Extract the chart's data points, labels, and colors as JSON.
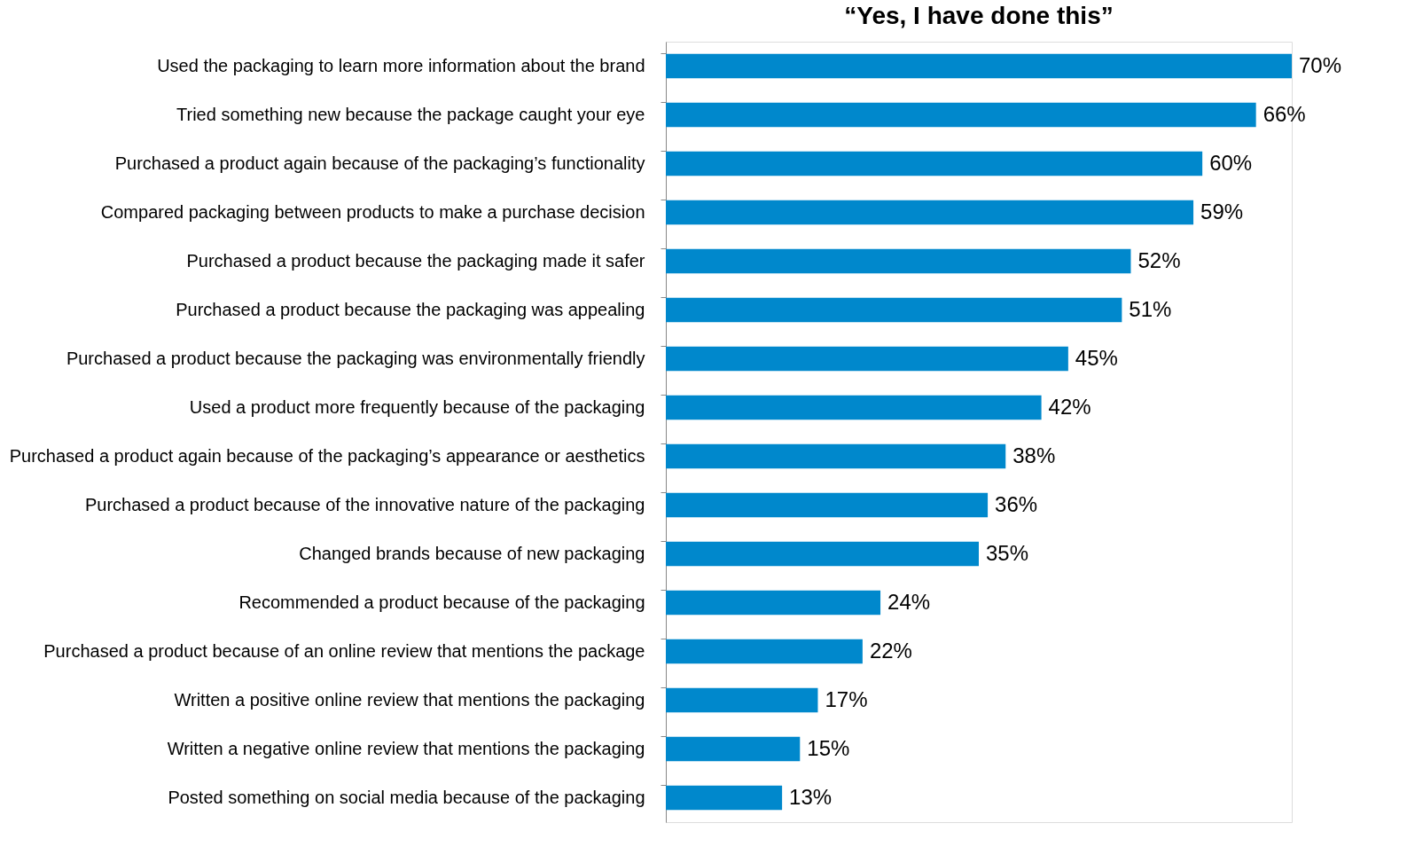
{
  "chart_data": {
    "type": "bar",
    "orientation": "horizontal",
    "title": "“Yes, I have done this”",
    "categories": [
      "Used the packaging to learn more information about the brand",
      "Tried something new because the package caught your eye",
      "Purchased a product again because of the packaging’s functionality",
      "Compared packaging between products to make a purchase decision",
      "Purchased a product because the packaging made it safer",
      "Purchased a product because the packaging was appealing",
      "Purchased a product because the packaging was environmentally friendly",
      "Used a product more frequently because of the packaging",
      "Purchased a product again because of the packaging’s appearance or aesthetics",
      "Purchased a product because of the innovative nature of the packaging",
      "Changed brands because of new packaging",
      "Recommended a product because of the packaging",
      "Purchased a product because of an online review that mentions the package",
      "Written a positive online review that mentions the packaging",
      "Written a negative online review that mentions the packaging",
      "Posted something on social media because of the packaging"
    ],
    "values": [
      70,
      66,
      60,
      59,
      52,
      51,
      45,
      42,
      38,
      36,
      35,
      24,
      22,
      17,
      15,
      13
    ],
    "value_labels": [
      "70%",
      "66%",
      "60%",
      "59%",
      "52%",
      "51%",
      "45%",
      "42%",
      "38%",
      "36%",
      "35%",
      "24%",
      "22%",
      "17%",
      "15%",
      "13%"
    ],
    "color": "#0088cc",
    "grid": false
  }
}
